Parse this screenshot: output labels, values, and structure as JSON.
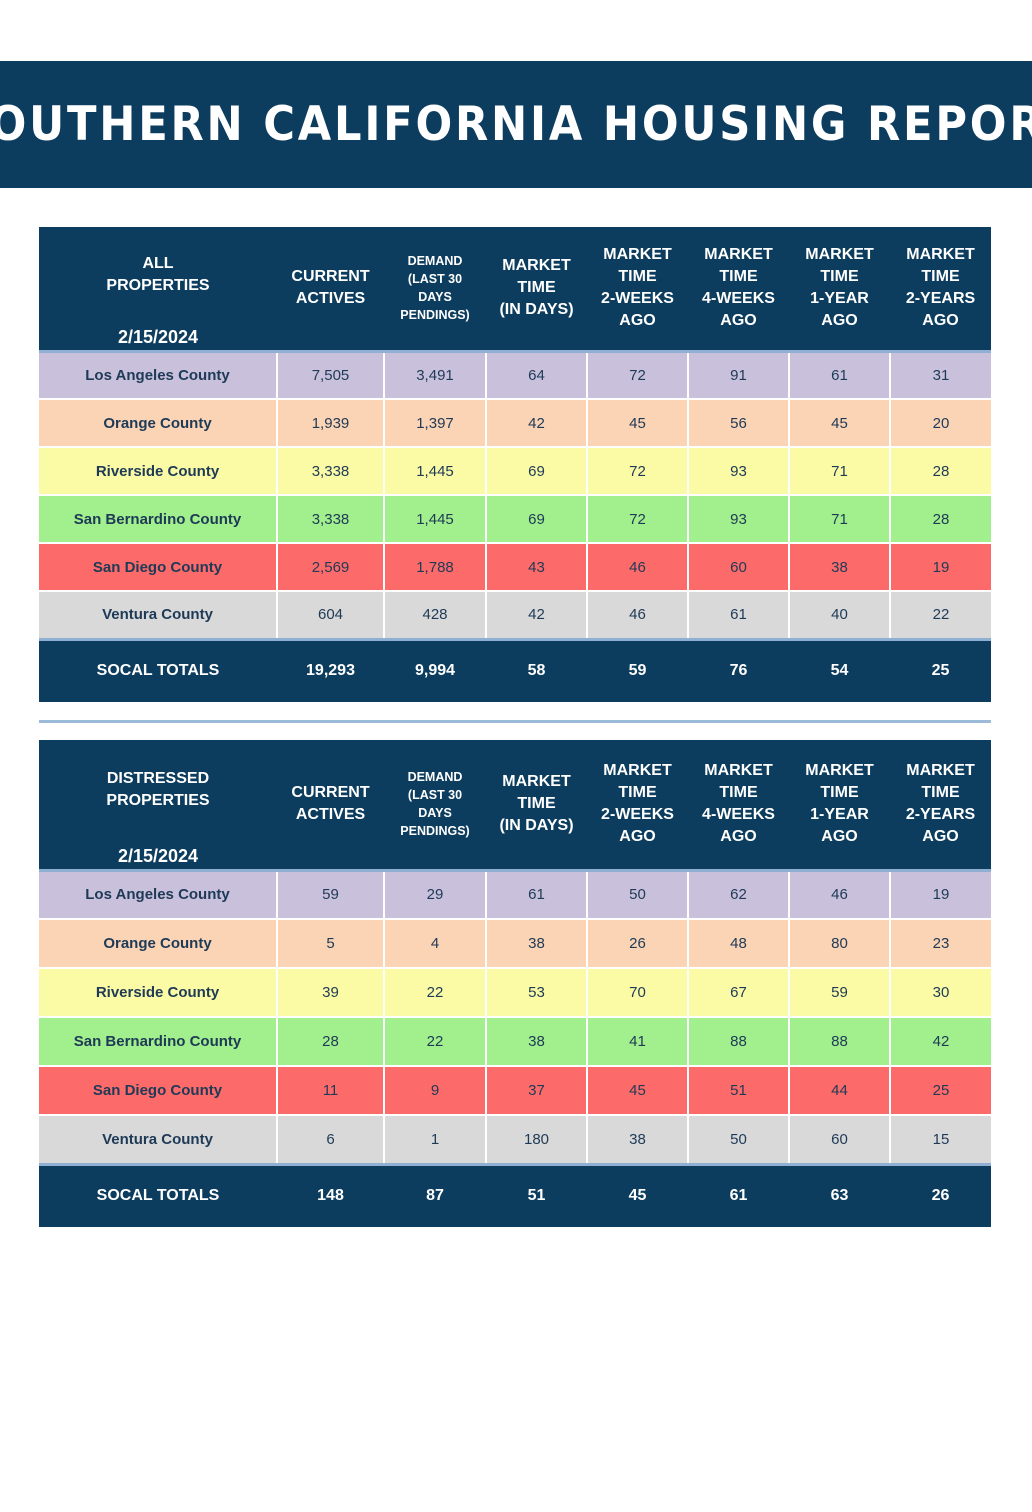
{
  "report_title": "SOUTHERN CALIFORNIA HOUSING REPORT",
  "row_colors": {
    "Los Angeles County": "#c9c0dc",
    "Orange County": "#fbd3b5",
    "Riverside County": "#fbfba6",
    "San Bernardino County": "#a1ef8d",
    "San Diego County": "#fd6a6a",
    "Ventura County": "#d9d9d9"
  },
  "header_color": "#0d3d5e",
  "tables": [
    {
      "corner_label_line1": "ALL",
      "corner_label_line2": "PROPERTIES",
      "date": "2/15/2024",
      "columns": [
        [
          "CURRENT",
          "ACTIVES"
        ],
        [
          "DEMAND",
          "(LAST 30",
          "DAYS",
          "PENDINGS)"
        ],
        [
          "MARKET",
          "TIME",
          "(IN DAYS)"
        ],
        [
          "MARKET",
          "TIME",
          "2-WEEKS",
          "AGO"
        ],
        [
          "MARKET",
          "TIME",
          "4-WEEKS",
          "AGO"
        ],
        [
          "MARKET",
          "TIME",
          "1-YEAR",
          "AGO"
        ],
        [
          "MARKET",
          "TIME",
          "2-YEARS",
          "AGO"
        ]
      ],
      "rows": [
        {
          "county": "Los Angeles County",
          "values": [
            "7,505",
            "3,491",
            "64",
            "72",
            "91",
            "61",
            "31"
          ]
        },
        {
          "county": "Orange County",
          "values": [
            "1,939",
            "1,397",
            "42",
            "45",
            "56",
            "45",
            "20"
          ]
        },
        {
          "county": "Riverside County",
          "values": [
            "3,338",
            "1,445",
            "69",
            "72",
            "93",
            "71",
            "28"
          ]
        },
        {
          "county": "San Bernardino County",
          "values": [
            "3,338",
            "1,445",
            "69",
            "72",
            "93",
            "71",
            "28"
          ]
        },
        {
          "county": "San Diego County",
          "values": [
            "2,569",
            "1,788",
            "43",
            "46",
            "60",
            "38",
            "19"
          ]
        },
        {
          "county": "Ventura County",
          "values": [
            "604",
            "428",
            "42",
            "46",
            "61",
            "40",
            "22"
          ]
        }
      ],
      "totals": {
        "label": "SOCAL TOTALS",
        "values": [
          "19,293",
          "9,994",
          "58",
          "59",
          "76",
          "54",
          "25"
        ]
      }
    },
    {
      "corner_label_line1": "DISTRESSED",
      "corner_label_line2": "PROPERTIES",
      "date": "2/15/2024",
      "columns": [
        [
          "CURRENT",
          "ACTIVES"
        ],
        [
          "DEMAND",
          "(LAST 30",
          "DAYS",
          "PENDINGS)"
        ],
        [
          "MARKET",
          "TIME",
          "(IN DAYS)"
        ],
        [
          "MARKET",
          "TIME",
          "2-WEEKS",
          "AGO"
        ],
        [
          "MARKET",
          "TIME",
          "4-WEEKS",
          "AGO"
        ],
        [
          "MARKET",
          "TIME",
          "1-YEAR",
          "AGO"
        ],
        [
          "MARKET",
          "TIME",
          "2-YEARS",
          "AGO"
        ]
      ],
      "rows": [
        {
          "county": "Los Angeles County",
          "values": [
            "59",
            "29",
            "61",
            "50",
            "62",
            "46",
            "19"
          ]
        },
        {
          "county": "Orange County",
          "values": [
            "5",
            "4",
            "38",
            "26",
            "48",
            "80",
            "23"
          ]
        },
        {
          "county": "Riverside County",
          "values": [
            "39",
            "22",
            "53",
            "70",
            "67",
            "59",
            "30"
          ]
        },
        {
          "county": "San Bernardino County",
          "values": [
            "28",
            "22",
            "38",
            "41",
            "88",
            "88",
            "42"
          ]
        },
        {
          "county": "San Diego County",
          "values": [
            "11",
            "9",
            "37",
            "45",
            "51",
            "44",
            "25"
          ]
        },
        {
          "county": "Ventura County",
          "values": [
            "6",
            "1",
            "180",
            "38",
            "50",
            "60",
            "15"
          ]
        }
      ],
      "totals": {
        "label": "SOCAL TOTALS",
        "values": [
          "148",
          "87",
          "51",
          "45",
          "61",
          "63",
          "26"
        ]
      }
    }
  ]
}
